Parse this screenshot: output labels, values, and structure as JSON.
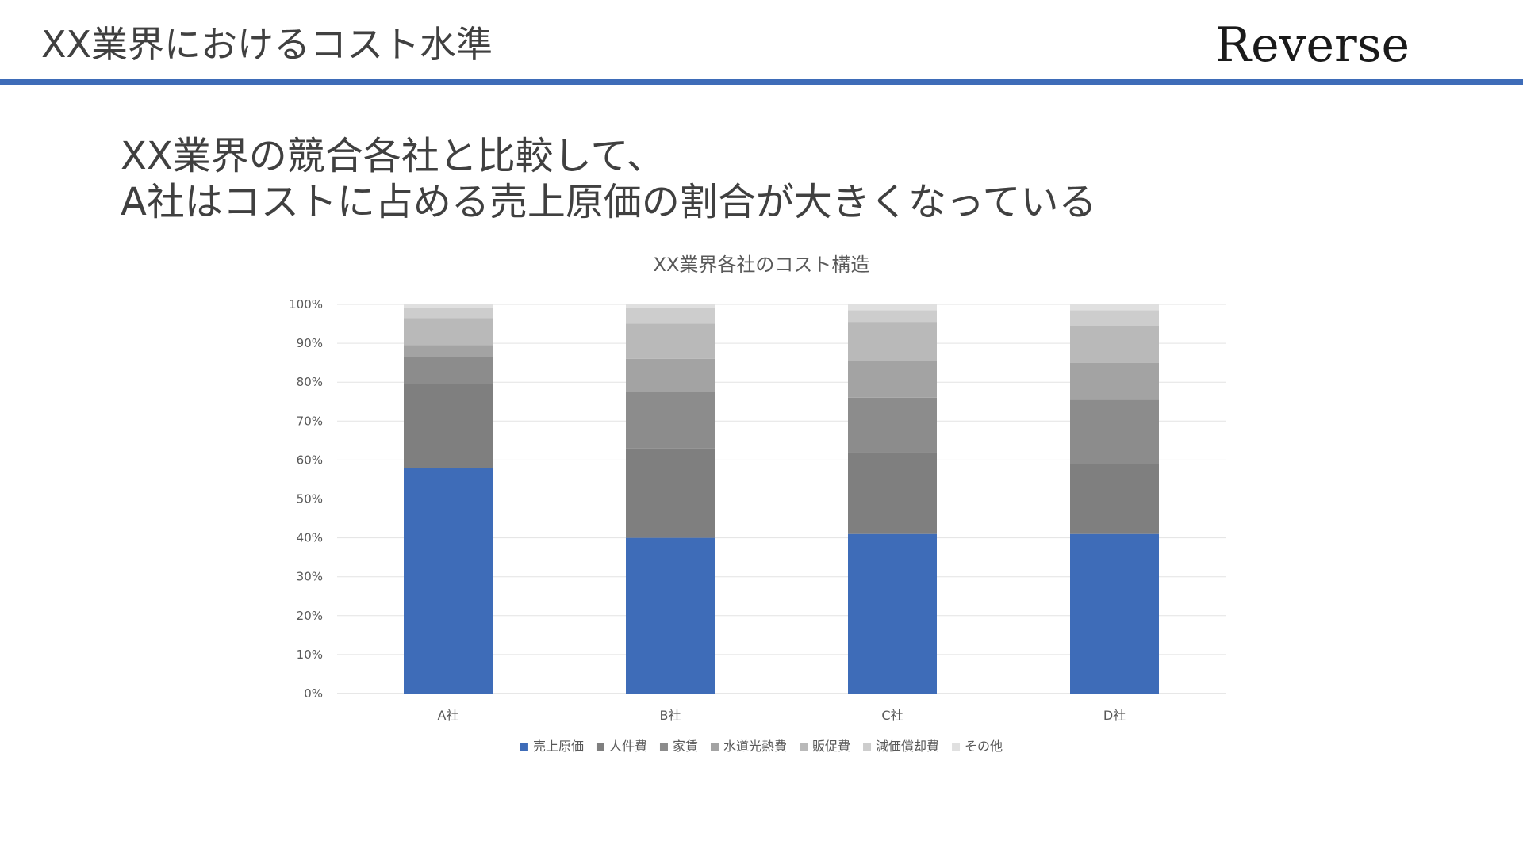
{
  "slide": {
    "title": "XX業界におけるコスト水準",
    "brand": "Reverse",
    "rule_color": "#3e6cb8"
  },
  "headline": {
    "line1": "XX業界の競合各社と比較して、",
    "line2": "A社はコストに占める売上原価の割合が大きくなっている"
  },
  "chart_data": {
    "type": "bar",
    "stacked": true,
    "title": "XX業界各社のコスト構造",
    "xlabel": "",
    "ylabel": "",
    "ylim": [
      0,
      100
    ],
    "y_ticks": [
      "0%",
      "10%",
      "20%",
      "30%",
      "40%",
      "50%",
      "60%",
      "70%",
      "80%",
      "90%",
      "100%"
    ],
    "grid": true,
    "legend_position": "bottom",
    "categories": [
      "A社",
      "B社",
      "C社",
      "D社"
    ],
    "series": [
      {
        "name": "売上原価",
        "color": "#3e6cb8",
        "values": [
          58,
          40,
          41,
          41
        ]
      },
      {
        "name": "人件費",
        "color": "#7f7f7f",
        "values": [
          21.5,
          23,
          21,
          18
        ]
      },
      {
        "name": "家賃",
        "color": "#8c8c8c",
        "values": [
          7,
          14.5,
          14,
          16.5
        ]
      },
      {
        "name": "水道光熱費",
        "color": "#a3a3a3",
        "values": [
          3,
          8.5,
          9.5,
          9.5
        ]
      },
      {
        "name": "販促費",
        "color": "#b9b9b9",
        "values": [
          7,
          9,
          10,
          9.5
        ]
      },
      {
        "name": "減価償却費",
        "color": "#cdcdcd",
        "values": [
          2.5,
          4,
          3,
          4
        ]
      },
      {
        "name": "その他",
        "color": "#e0e0e0",
        "values": [
          1,
          1,
          1.5,
          1.5
        ]
      }
    ]
  }
}
